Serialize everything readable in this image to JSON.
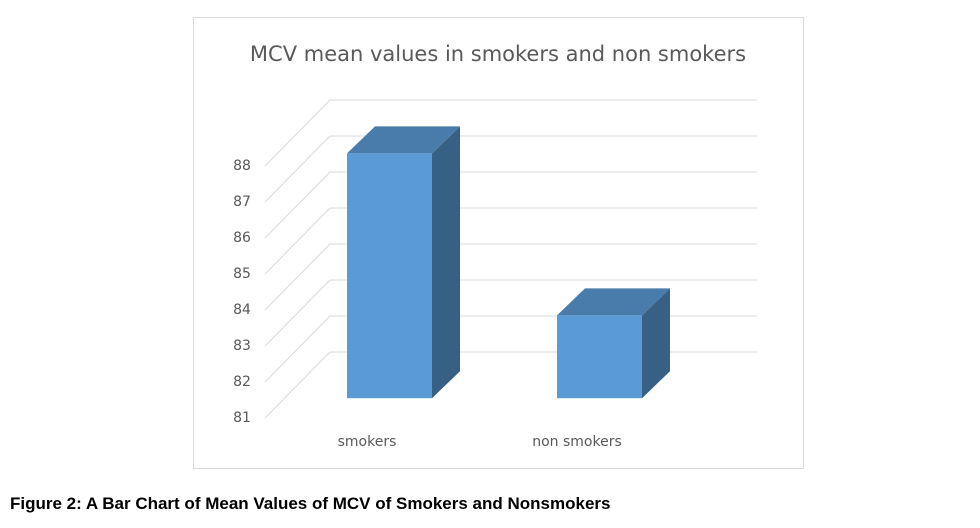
{
  "chart_data": {
    "type": "bar3d",
    "title": "MCV mean values in smokers and non smokers",
    "categories": [
      "smokers",
      "non smokers"
    ],
    "values": [
      87.8,
      83.3
    ],
    "color": "#5b9bd5",
    "ylim": [
      81,
      88
    ],
    "yticks": [
      81,
      82,
      83,
      84,
      85,
      86,
      87,
      88
    ],
    "grid": true
  },
  "caption": "Figure 2: A Bar Chart of Mean Values of MCV of Smokers and Nonsmokers"
}
